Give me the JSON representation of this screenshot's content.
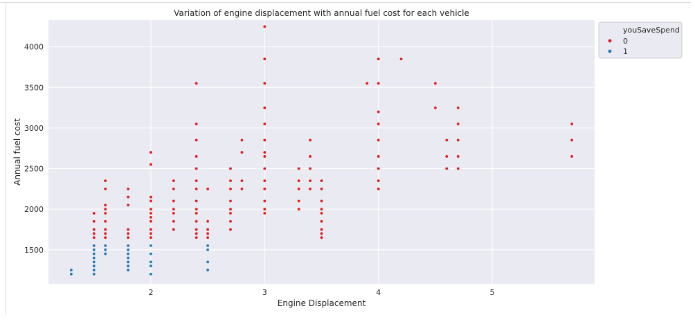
{
  "chart_data": {
    "type": "scatter",
    "title": "Variation of engine displacement with annual fuel cost for each vehicle",
    "xlabel": "Engine Displacement",
    "ylabel": "Annual fuel cost",
    "xlim": [
      1.1,
      5.9
    ],
    "ylim": [
      1080,
      4330
    ],
    "x_ticks": [
      2,
      3,
      4,
      5
    ],
    "y_ticks": [
      1500,
      2000,
      2500,
      3000,
      3500,
      4000
    ],
    "grid": true,
    "legend": {
      "title": "youSaveSpend",
      "position": "upper-right-outside"
    },
    "series": [
      {
        "name": "0",
        "color": "#e41a1c",
        "points": [
          [
            1.5,
            1650
          ],
          [
            1.5,
            1700
          ],
          [
            1.5,
            1750
          ],
          [
            1.5,
            1850
          ],
          [
            1.5,
            1950
          ],
          [
            1.6,
            1650
          ],
          [
            1.6,
            1700
          ],
          [
            1.6,
            1750
          ],
          [
            1.6,
            1850
          ],
          [
            1.6,
            1950
          ],
          [
            1.6,
            2000
          ],
          [
            1.6,
            2050
          ],
          [
            1.6,
            2250
          ],
          [
            1.6,
            2350
          ],
          [
            1.8,
            1650
          ],
          [
            1.8,
            1700
          ],
          [
            1.8,
            1750
          ],
          [
            1.8,
            2050
          ],
          [
            1.8,
            2150
          ],
          [
            1.8,
            2250
          ],
          [
            2.0,
            1650
          ],
          [
            2.0,
            1700
          ],
          [
            2.0,
            1750
          ],
          [
            2.0,
            1850
          ],
          [
            2.0,
            1900
          ],
          [
            2.0,
            1950
          ],
          [
            2.0,
            2000
          ],
          [
            2.0,
            2100
          ],
          [
            2.0,
            2150
          ],
          [
            2.0,
            2550
          ],
          [
            2.0,
            2700
          ],
          [
            2.2,
            1750
          ],
          [
            2.2,
            1850
          ],
          [
            2.2,
            1950
          ],
          [
            2.2,
            2000
          ],
          [
            2.2,
            2100
          ],
          [
            2.2,
            2250
          ],
          [
            2.2,
            2350
          ],
          [
            2.4,
            1650
          ],
          [
            2.4,
            1700
          ],
          [
            2.4,
            1750
          ],
          [
            2.4,
            1850
          ],
          [
            2.4,
            1950
          ],
          [
            2.4,
            2000
          ],
          [
            2.4,
            2100
          ],
          [
            2.4,
            2250
          ],
          [
            2.4,
            2350
          ],
          [
            2.4,
            2500
          ],
          [
            2.4,
            2650
          ],
          [
            2.4,
            2850
          ],
          [
            2.4,
            3050
          ],
          [
            2.4,
            3550
          ],
          [
            2.5,
            1650
          ],
          [
            2.5,
            1700
          ],
          [
            2.5,
            1750
          ],
          [
            2.5,
            1850
          ],
          [
            2.5,
            2250
          ],
          [
            2.7,
            1750
          ],
          [
            2.7,
            1850
          ],
          [
            2.7,
            1950
          ],
          [
            2.7,
            2000
          ],
          [
            2.7,
            2100
          ],
          [
            2.7,
            2250
          ],
          [
            2.7,
            2350
          ],
          [
            2.7,
            2500
          ],
          [
            2.8,
            2250
          ],
          [
            2.8,
            2350
          ],
          [
            2.8,
            2700
          ],
          [
            2.8,
            2850
          ],
          [
            3.0,
            1950
          ],
          [
            3.0,
            2000
          ],
          [
            3.0,
            2100
          ],
          [
            3.0,
            2250
          ],
          [
            3.0,
            2350
          ],
          [
            3.0,
            2500
          ],
          [
            3.0,
            2650
          ],
          [
            3.0,
            2700
          ],
          [
            3.0,
            2850
          ],
          [
            3.0,
            3050
          ],
          [
            3.0,
            3250
          ],
          [
            3.0,
            3550
          ],
          [
            3.0,
            3850
          ],
          [
            3.0,
            4250
          ],
          [
            3.3,
            2000
          ],
          [
            3.3,
            2100
          ],
          [
            3.3,
            2250
          ],
          [
            3.3,
            2350
          ],
          [
            3.3,
            2500
          ],
          [
            3.4,
            2250
          ],
          [
            3.4,
            2350
          ],
          [
            3.4,
            2500
          ],
          [
            3.4,
            2650
          ],
          [
            3.4,
            2850
          ],
          [
            3.5,
            1650
          ],
          [
            3.5,
            1700
          ],
          [
            3.5,
            1750
          ],
          [
            3.5,
            1850
          ],
          [
            3.5,
            1950
          ],
          [
            3.5,
            2000
          ],
          [
            3.5,
            2100
          ],
          [
            3.5,
            2250
          ],
          [
            3.5,
            2350
          ],
          [
            3.9,
            3550
          ],
          [
            4.0,
            2250
          ],
          [
            4.0,
            2350
          ],
          [
            4.0,
            2500
          ],
          [
            4.0,
            2650
          ],
          [
            4.0,
            2850
          ],
          [
            4.0,
            3050
          ],
          [
            4.0,
            3200
          ],
          [
            4.0,
            3550
          ],
          [
            4.0,
            3850
          ],
          [
            4.2,
            3850
          ],
          [
            4.5,
            3250
          ],
          [
            4.5,
            3550
          ],
          [
            4.6,
            2500
          ],
          [
            4.6,
            2650
          ],
          [
            4.6,
            2850
          ],
          [
            4.7,
            2500
          ],
          [
            4.7,
            2650
          ],
          [
            4.7,
            2850
          ],
          [
            4.7,
            3050
          ],
          [
            4.7,
            3250
          ],
          [
            5.7,
            2650
          ],
          [
            5.7,
            2850
          ],
          [
            5.7,
            3050
          ]
        ]
      },
      {
        "name": "1",
        "color": "#1f78b4",
        "points": [
          [
            1.3,
            1200
          ],
          [
            1.3,
            1250
          ],
          [
            1.5,
            1200
          ],
          [
            1.5,
            1250
          ],
          [
            1.5,
            1300
          ],
          [
            1.5,
            1350
          ],
          [
            1.5,
            1400
          ],
          [
            1.5,
            1450
          ],
          [
            1.5,
            1500
          ],
          [
            1.5,
            1550
          ],
          [
            1.6,
            1450
          ],
          [
            1.6,
            1500
          ],
          [
            1.6,
            1550
          ],
          [
            1.8,
            1250
          ],
          [
            1.8,
            1300
          ],
          [
            1.8,
            1350
          ],
          [
            1.8,
            1400
          ],
          [
            1.8,
            1450
          ],
          [
            1.8,
            1500
          ],
          [
            1.8,
            1550
          ],
          [
            2.0,
            1200
          ],
          [
            2.0,
            1300
          ],
          [
            2.0,
            1350
          ],
          [
            2.0,
            1450
          ],
          [
            2.0,
            1550
          ],
          [
            2.5,
            1250
          ],
          [
            2.5,
            1350
          ],
          [
            2.5,
            1500
          ],
          [
            2.5,
            1550
          ]
        ]
      }
    ]
  }
}
